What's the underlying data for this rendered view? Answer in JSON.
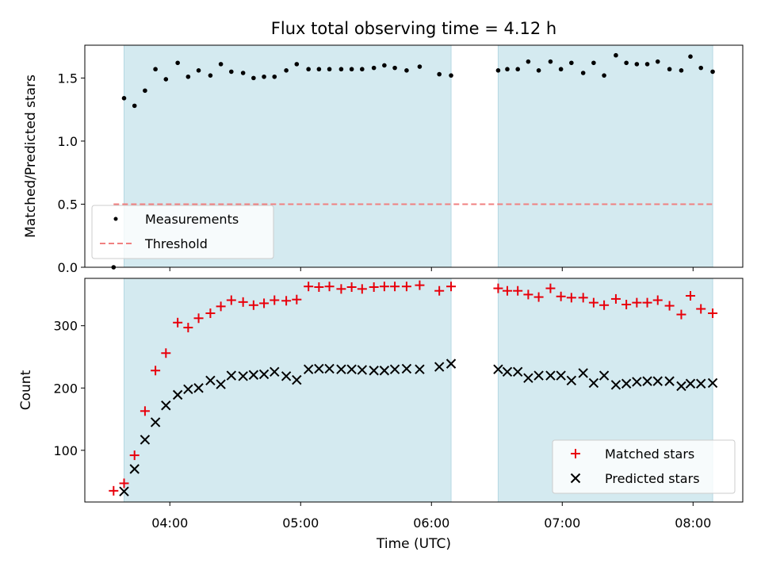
{
  "chart_data": {
    "title": "Flux total observing time = 4.12 h",
    "xlabel": "Time (UTC)",
    "x_ticks": [
      "04:00",
      "05:00",
      "06:00",
      "07:00",
      "08:00"
    ],
    "x_tick_hours": [
      4,
      5,
      6,
      7,
      8
    ],
    "xlim_hours": [
      3.35,
      8.38
    ],
    "observing_windows_hours": [
      [
        3.65,
        6.15
      ],
      [
        6.51,
        8.15
      ]
    ],
    "colors": {
      "window": "#d4eaf0",
      "threshold": "#f08080",
      "matched": "#e8000b",
      "predicted": "#000000",
      "measurements": "#000000"
    },
    "panels": [
      {
        "type": "scatter",
        "ylabel": "Matched/Predicted stars",
        "ylim": [
          0,
          1.76
        ],
        "y_ticks": [
          "0.0",
          "0.5",
          "1.0",
          "1.5"
        ],
        "y_tick_values": [
          0,
          0.5,
          1.0,
          1.5
        ],
        "legend_position": "lower-left",
        "series": [
          {
            "name": "Measurements",
            "marker": "dot",
            "x_hours": [
              3.57,
              3.65,
              3.73,
              3.81,
              3.89,
              3.97,
              4.06,
              4.14,
              4.22,
              4.31,
              4.39,
              4.47,
              4.56,
              4.64,
              4.72,
              4.8,
              4.89,
              4.97,
              5.06,
              5.14,
              5.22,
              5.31,
              5.39,
              5.47,
              5.56,
              5.64,
              5.72,
              5.81,
              5.91,
              6.06,
              6.15,
              6.51,
              6.58,
              6.66,
              6.74,
              6.82,
              6.91,
              6.99,
              7.07,
              7.16,
              7.24,
              7.32,
              7.41,
              7.49,
              7.57,
              7.65,
              7.73,
              7.82,
              7.91,
              7.98,
              8.06,
              8.15
            ],
            "y": [
              0.0,
              1.34,
              1.28,
              1.4,
              1.57,
              1.49,
              1.62,
              1.51,
              1.56,
              1.52,
              1.61,
              1.55,
              1.54,
              1.5,
              1.51,
              1.51,
              1.56,
              1.61,
              1.57,
              1.57,
              1.57,
              1.57,
              1.57,
              1.57,
              1.58,
              1.6,
              1.58,
              1.56,
              1.59,
              1.53,
              1.52,
              1.56,
              1.57,
              1.57,
              1.63,
              1.56,
              1.63,
              1.57,
              1.62,
              1.54,
              1.62,
              1.52,
              1.68,
              1.62,
              1.61,
              1.61,
              1.63,
              1.57,
              1.56,
              1.67,
              1.58,
              1.55
            ]
          },
          {
            "name": "Threshold",
            "style": "dashed",
            "x_hours": [
              3.57,
              8.15
            ],
            "y": [
              0.5,
              0.5
            ]
          }
        ]
      },
      {
        "type": "scatter",
        "ylabel": "Count",
        "ylim": [
          17,
          376
        ],
        "y_ticks": [
          "100",
          "200",
          "300"
        ],
        "y_tick_values": [
          100,
          200,
          300
        ],
        "legend_position": "lower-right",
        "series": [
          {
            "name": "Matched stars",
            "marker": "plus",
            "x_hours": [
              3.57,
              3.65,
              3.73,
              3.81,
              3.89,
              3.97,
              4.06,
              4.14,
              4.22,
              4.31,
              4.39,
              4.47,
              4.56,
              4.64,
              4.72,
              4.8,
              4.89,
              4.97,
              5.06,
              5.14,
              5.22,
              5.31,
              5.39,
              5.47,
              5.56,
              5.64,
              5.72,
              5.81,
              5.91,
              6.06,
              6.15,
              6.51,
              6.58,
              6.66,
              6.74,
              6.82,
              6.91,
              6.99,
              7.07,
              7.16,
              7.24,
              7.32,
              7.41,
              7.49,
              7.57,
              7.65,
              7.73,
              7.82,
              7.91,
              7.98,
              8.06,
              8.15
            ],
            "y": [
              35,
              47,
              92,
              163,
              228,
              256,
              305,
              297,
              312,
              320,
              331,
              341,
              338,
              333,
              336,
              341,
              340,
              342,
              363,
              362,
              363,
              359,
              362,
              359,
              362,
              363,
              363,
              363,
              365,
              356,
              363,
              360,
              356,
              356,
              350,
              346,
              360,
              347,
              345,
              345,
              337,
              333,
              343,
              334,
              337,
              337,
              341,
              332,
              318,
              348,
              327,
              320
            ]
          },
          {
            "name": "Predicted stars",
            "marker": "x",
            "x_hours": [
              3.65,
              3.73,
              3.81,
              3.89,
              3.97,
              4.06,
              4.14,
              4.22,
              4.31,
              4.39,
              4.47,
              4.56,
              4.64,
              4.72,
              4.8,
              4.89,
              4.97,
              5.06,
              5.14,
              5.22,
              5.31,
              5.39,
              5.47,
              5.56,
              5.64,
              5.72,
              5.81,
              5.91,
              6.06,
              6.15,
              6.51,
              6.58,
              6.66,
              6.74,
              6.82,
              6.91,
              6.99,
              7.07,
              7.16,
              7.24,
              7.32,
              7.41,
              7.49,
              7.57,
              7.65,
              7.73,
              7.82,
              7.91,
              7.98,
              8.06,
              8.15
            ],
            "y": [
              34,
              70,
              117,
              145,
              172,
              189,
              198,
              200,
              212,
              206,
              220,
              219,
              221,
              222,
              226,
              219,
              213,
              230,
              231,
              231,
              230,
              230,
              229,
              228,
              228,
              230,
              231,
              230,
              234,
              239,
              230,
              226,
              226,
              216,
              220,
              220,
              220,
              212,
              224,
              208,
              220,
              205,
              207,
              210,
              211,
              211,
              211,
              203,
              207,
              207,
              208
            ]
          }
        ]
      }
    ]
  }
}
